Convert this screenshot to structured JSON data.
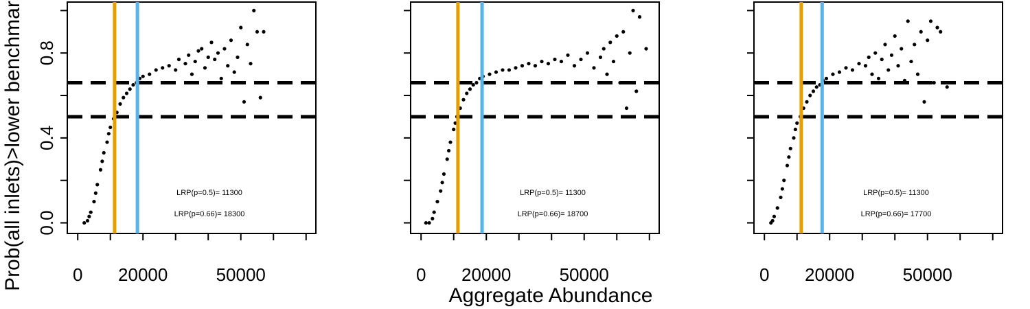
{
  "ylabel": "Prob(all inlets)>lower benchmark",
  "xlabel": "Aggregate Abundance",
  "chart_data": [
    {
      "type": "scatter",
      "point_color": "#000000",
      "xlim": [
        -3200,
        73000
      ],
      "ylim": [
        -0.05,
        1.04
      ],
      "xticks": [
        0,
        {
          "value": 10000,
          "label": null
        },
        20000,
        {
          "value": 30000,
          "label": null
        },
        {
          "value": 40000,
          "label": null
        },
        50000,
        {
          "value": 60000,
          "label": null
        },
        {
          "value": 70000,
          "label": null
        }
      ],
      "yticks": [
        {
          "value": 0,
          "label": "0.0"
        },
        {
          "value": 0.2,
          "label": null
        },
        0.4,
        {
          "value": 0.6,
          "label": null
        },
        0.8,
        {
          "value": 1.0,
          "label": null
        }
      ],
      "hlines": [
        0.5,
        0.66
      ],
      "vlines": [
        {
          "value": 11300,
          "color": "#e69f00"
        },
        {
          "value": 18300,
          "color": "#56b4e9"
        }
      ],
      "annotations": [
        "LRP(p=0.5)=  11300",
        "LRP(p=0.66)=  18300"
      ],
      "x": [
        2000,
        3000,
        3500,
        4000,
        5000,
        5500,
        6000,
        7000,
        7500,
        8000,
        9000,
        9500,
        10000,
        11000,
        12000,
        13000,
        14000,
        15000,
        16000,
        17000,
        18000,
        19000,
        20000,
        22000,
        24000,
        26000,
        28000,
        30000,
        31000,
        33000,
        34000,
        35000,
        36000,
        37000,
        38000,
        39000,
        40000,
        41000,
        42000,
        43000,
        44000,
        45000,
        46000,
        47000,
        48000,
        49000,
        50000,
        50500,
        51000,
        52000,
        53000,
        54000,
        55000,
        56000,
        57000
      ],
      "values": [
        0,
        0.01,
        0.03,
        0.05,
        0.1,
        0.14,
        0.18,
        0.25,
        0.29,
        0.33,
        0.38,
        0.42,
        0.45,
        0.49,
        0.52,
        0.56,
        0.59,
        0.61,
        0.63,
        0.65,
        0.66,
        0.68,
        0.69,
        0.7,
        0.72,
        0.73,
        0.74,
        0.72,
        0.77,
        0.75,
        0.79,
        0.7,
        0.76,
        0.81,
        0.82,
        0.73,
        0.78,
        0.85,
        0.77,
        0.8,
        0.68,
        0.82,
        0.74,
        0.86,
        0.71,
        0.78,
        0.92,
        0.66,
        0.57,
        0.84,
        0.75,
        1.0,
        0.9,
        0.59,
        0.9
      ]
    },
    {
      "type": "scatter",
      "point_color": "#000000",
      "xlim": [
        -3200,
        73000
      ],
      "ylim": [
        -0.05,
        1.04
      ],
      "xticks": [
        0,
        {
          "value": 10000,
          "label": null
        },
        20000,
        {
          "value": 30000,
          "label": null
        },
        {
          "value": 40000,
          "label": null
        },
        50000,
        {
          "value": 60000,
          "label": null
        },
        {
          "value": 70000,
          "label": null
        }
      ],
      "yticks": [
        {
          "value": 0,
          "label": null
        },
        {
          "value": 0.2,
          "label": null
        },
        {
          "value": 0.4,
          "label": null
        },
        {
          "value": 0.6,
          "label": null
        },
        {
          "value": 0.8,
          "label": null
        },
        {
          "value": 1.0,
          "label": null
        }
      ],
      "hlines": [
        0.5,
        0.66
      ],
      "vlines": [
        {
          "value": 11300,
          "color": "#e69f00"
        },
        {
          "value": 18700,
          "color": "#56b4e9"
        }
      ],
      "annotations": [
        "LRP(p=0.5)=  11300",
        "LRP(p=0.66)=  18700"
      ],
      "x": [
        1500,
        2500,
        3500,
        4000,
        5000,
        6000,
        6500,
        7000,
        8000,
        8500,
        9000,
        10000,
        10500,
        11000,
        12000,
        13000,
        14000,
        15000,
        16000,
        17000,
        18000,
        19000,
        21000,
        23000,
        25000,
        27000,
        29000,
        31000,
        33000,
        35000,
        37000,
        39000,
        41000,
        43000,
        45000,
        47000,
        49000,
        51000,
        53000,
        55000,
        56000,
        57000,
        58000,
        59000,
        60000,
        61000,
        62000,
        63000,
        64000,
        65000,
        66000,
        67000,
        69000
      ],
      "values": [
        0,
        0,
        0.02,
        0.05,
        0.1,
        0.15,
        0.19,
        0.23,
        0.3,
        0.34,
        0.38,
        0.44,
        0.47,
        0.5,
        0.54,
        0.58,
        0.61,
        0.63,
        0.65,
        0.66,
        0.68,
        0.69,
        0.7,
        0.71,
        0.72,
        0.72,
        0.73,
        0.74,
        0.75,
        0.74,
        0.76,
        0.75,
        0.77,
        0.76,
        0.79,
        0.74,
        0.77,
        0.8,
        0.73,
        0.78,
        0.82,
        0.7,
        0.85,
        0.76,
        0.88,
        0.66,
        0.9,
        0.54,
        0.8,
        1.0,
        0.62,
        0.97,
        0.82
      ]
    },
    {
      "type": "scatter",
      "point_color": "#000000",
      "xlim": [
        -3200,
        73000
      ],
      "ylim": [
        -0.05,
        1.04
      ],
      "xticks": [
        0,
        {
          "value": 10000,
          "label": null
        },
        20000,
        {
          "value": 30000,
          "label": null
        },
        {
          "value": 40000,
          "label": null
        },
        50000,
        {
          "value": 60000,
          "label": null
        },
        {
          "value": 70000,
          "label": null
        }
      ],
      "yticks": [
        {
          "value": 0,
          "label": null
        },
        {
          "value": 0.2,
          "label": null
        },
        {
          "value": 0.4,
          "label": null
        },
        {
          "value": 0.6,
          "label": null
        },
        {
          "value": 0.8,
          "label": null
        },
        {
          "value": 1.0,
          "label": null
        }
      ],
      "hlines": [
        0.5,
        0.66
      ],
      "vlines": [
        {
          "value": 11300,
          "color": "#e69f00"
        },
        {
          "value": 17700,
          "color": "#56b4e9"
        }
      ],
      "annotations": [
        "LRP(p=0.5)=  11300",
        "LRP(p=0.66)=  17700"
      ],
      "x": [
        2000,
        2500,
        3000,
        4000,
        5000,
        5500,
        6000,
        7000,
        7500,
        8000,
        9000,
        9500,
        10000,
        11000,
        12000,
        13000,
        14000,
        15000,
        16000,
        17000,
        18000,
        19000,
        21000,
        23000,
        25000,
        27000,
        29000,
        31000,
        32000,
        33000,
        34000,
        35000,
        36000,
        37000,
        38000,
        39000,
        40000,
        41000,
        42000,
        43000,
        44000,
        45000,
        46000,
        47000,
        48000,
        49000,
        50000,
        51000,
        52000,
        53000,
        54000,
        56000
      ],
      "values": [
        0,
        0.01,
        0.03,
        0.07,
        0.12,
        0.16,
        0.2,
        0.27,
        0.31,
        0.35,
        0.4,
        0.44,
        0.47,
        0.5,
        0.54,
        0.57,
        0.6,
        0.62,
        0.64,
        0.65,
        0.67,
        0.68,
        0.7,
        0.71,
        0.73,
        0.72,
        0.75,
        0.74,
        0.78,
        0.7,
        0.8,
        0.68,
        0.77,
        0.84,
        0.72,
        0.79,
        0.88,
        0.74,
        0.82,
        0.67,
        0.95,
        0.76,
        0.84,
        0.7,
        0.9,
        0.57,
        0.86,
        0.95,
        0.66,
        0.92,
        0.9,
        0.64
      ]
    }
  ]
}
